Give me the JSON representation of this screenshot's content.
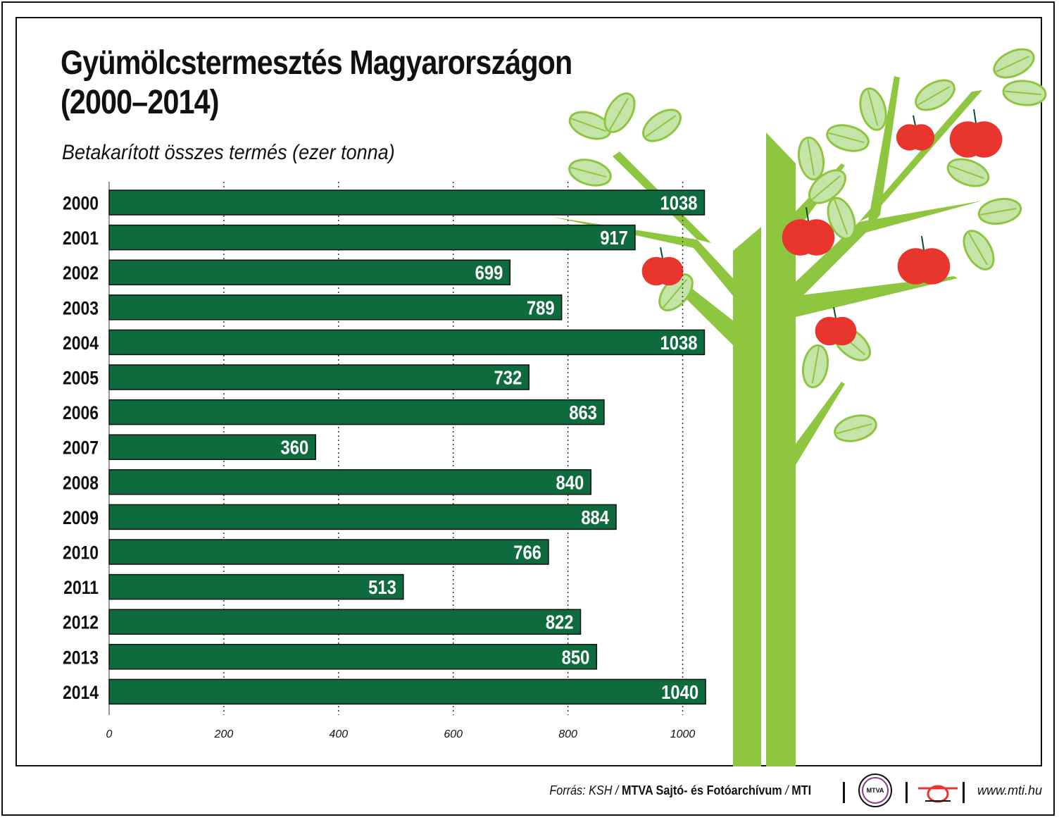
{
  "title_line1": "Gyümölcstermesztés Magyarországon",
  "title_line2": "(2000–2014)",
  "subtitle": "Betakarított összes termés (ezer tonna)",
  "colors": {
    "bar": "#0d6b3d",
    "leaf": "#8ec63f",
    "leaf_light": "#c5e4a8",
    "apple": "#e8352e",
    "text": "#111111"
  },
  "chart_data": {
    "type": "bar",
    "orientation": "horizontal",
    "categories": [
      "2000",
      "2001",
      "2002",
      "2003",
      "2004",
      "2005",
      "2006",
      "2007",
      "2008",
      "2009",
      "2010",
      "2011",
      "2012",
      "2013",
      "2014"
    ],
    "values": [
      1038,
      917,
      699,
      789,
      1038,
      732,
      863,
      360,
      840,
      884,
      766,
      513,
      822,
      850,
      1040
    ],
    "title": "Gyümölcstermesztés Magyarországon (2000–2014)",
    "subtitle": "Betakarított összes termés (ezer tonna)",
    "xticks": [
      0,
      200,
      400,
      600,
      800,
      1000
    ],
    "xlim": [
      0,
      1040
    ],
    "grid": "vertical dotted"
  },
  "footer": {
    "source_prefix": "Forrás: KSH /",
    "source_bold": "MTVA Sajtó- és Fotóarchívum",
    "source_mid": "/",
    "source_mti": "MTI",
    "mtva_logo_text": "MTVA",
    "url": "www.mti.hu"
  },
  "icons": {
    "mtva": "mtva-logo-icon",
    "mti": "mti-logo-icon",
    "tree": "apple-tree-icon"
  }
}
